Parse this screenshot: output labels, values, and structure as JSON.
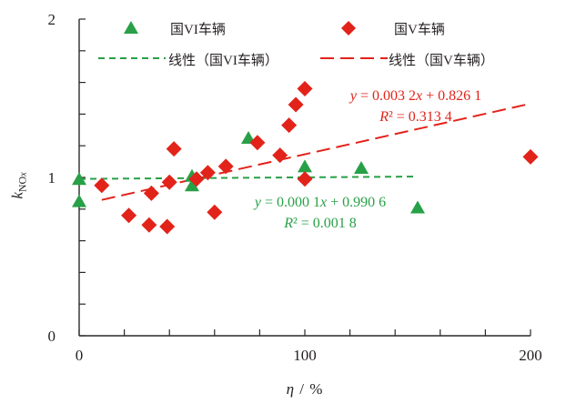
{
  "legend": {
    "row1": [
      {
        "marker": "triangle",
        "color": "#28a047",
        "label": "国VI车辆"
      },
      {
        "marker": "diamond",
        "color": "#e2231a",
        "label": "国V车辆"
      }
    ],
    "row2": [
      {
        "line": "short-dash",
        "color": "#28a047",
        "label": "线性（国VI车辆）"
      },
      {
        "line": "long-dash",
        "color": "#e2231a",
        "label": "线性（国V车辆）"
      }
    ]
  },
  "chart_data": {
    "type": "scatter",
    "title": "",
    "xlabel": "η / %",
    "ylabel": "k_NOx",
    "ylabel_parts": {
      "k": "k",
      "sub": "NO",
      "subsub": "x"
    },
    "xlim": [
      0,
      200
    ],
    "ylim": [
      0,
      2
    ],
    "x_tick_step": 20,
    "y_tick_step": 0.2,
    "x_ticks_labeled": [
      0,
      100,
      200
    ],
    "y_ticks_labeled": [
      0,
      1,
      2
    ],
    "grid": false,
    "legend_position": "top-inside",
    "series": [
      {
        "name": "国VI车辆",
        "marker": "triangle",
        "color": "#28a047",
        "points": [
          [
            0,
            0.99
          ],
          [
            0,
            0.85
          ],
          [
            50,
            1.01
          ],
          [
            50,
            0.95
          ],
          [
            75,
            1.25
          ],
          [
            100,
            1.07
          ],
          [
            125,
            1.06
          ],
          [
            150,
            0.81
          ]
        ]
      },
      {
        "name": "国V车辆",
        "marker": "diamond",
        "color": "#e2231a",
        "points": [
          [
            10,
            0.95
          ],
          [
            22,
            0.76
          ],
          [
            31,
            0.7
          ],
          [
            32,
            0.9
          ],
          [
            39,
            0.69
          ],
          [
            40,
            0.97
          ],
          [
            42,
            1.18
          ],
          [
            52,
            0.99
          ],
          [
            57,
            1.03
          ],
          [
            60,
            0.78
          ],
          [
            65,
            1.07
          ],
          [
            79,
            1.22
          ],
          [
            89,
            1.14
          ],
          [
            93,
            1.33
          ],
          [
            96,
            1.46
          ],
          [
            100,
            1.56
          ],
          [
            100,
            0.99
          ],
          [
            200,
            1.13
          ]
        ]
      }
    ],
    "trendlines": [
      {
        "name": "线性（国VI车辆）",
        "color": "#28a047",
        "slope": 0.0001,
        "intercept": 0.9906,
        "x_range": [
          0,
          150
        ],
        "dash": "7,5",
        "width": 2
      },
      {
        "name": "线性（国V车辆）",
        "color": "#e2231a",
        "slope": 0.0032,
        "intercept": 0.8261,
        "x_range": [
          10,
          198
        ],
        "dash": "15,7",
        "width": 2
      }
    ],
    "annotations": [
      {
        "lines": [
          "y = 0.003 2x + 0.826 1",
          "R² = 0.313 4"
        ],
        "color": "#e2231a"
      },
      {
        "lines": [
          "y = 0.000 1x + 0.990 6",
          "R² = 0.001 8"
        ],
        "color": "#28a047"
      }
    ]
  }
}
